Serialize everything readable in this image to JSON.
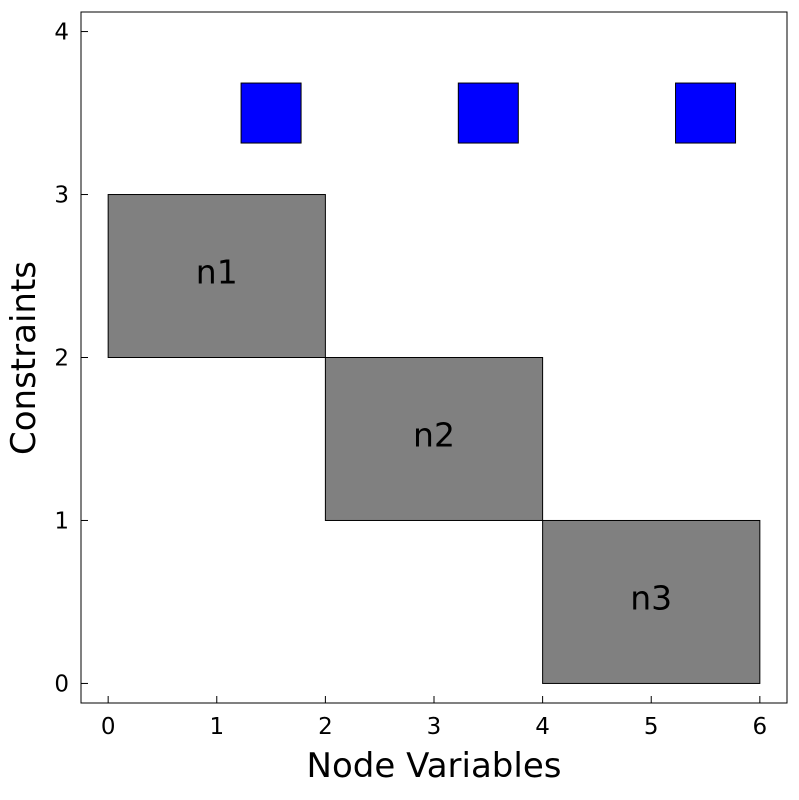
{
  "chart_data": {
    "type": "block-matrix",
    "xlabel": "Node Variables",
    "ylabel": "Constraints",
    "xlim": [
      -0.25,
      6.25
    ],
    "ylim": [
      -0.12,
      4.12
    ],
    "xticks": [
      "0",
      "1",
      "2",
      "3",
      "4",
      "5",
      "6"
    ],
    "yticks": [
      "0",
      "1",
      "2",
      "3",
      "4"
    ],
    "grid": false,
    "legend": "none",
    "blocks": [
      {
        "label": "n1",
        "x0": 0,
        "x1": 2,
        "y0": 2,
        "y1": 3
      },
      {
        "label": "n2",
        "x0": 2,
        "x1": 4,
        "y0": 1,
        "y1": 2
      },
      {
        "label": "n3",
        "x0": 4,
        "x1": 6,
        "y0": 0,
        "y1": 1
      }
    ],
    "markers": [
      {
        "x": 1.5,
        "y": 3.5
      },
      {
        "x": 3.5,
        "y": 3.5
      },
      {
        "x": 5.5,
        "y": 3.5
      }
    ],
    "colors": {
      "block_fill": "#808080",
      "marker_fill": "#0000ff",
      "stroke": "#000000"
    }
  }
}
